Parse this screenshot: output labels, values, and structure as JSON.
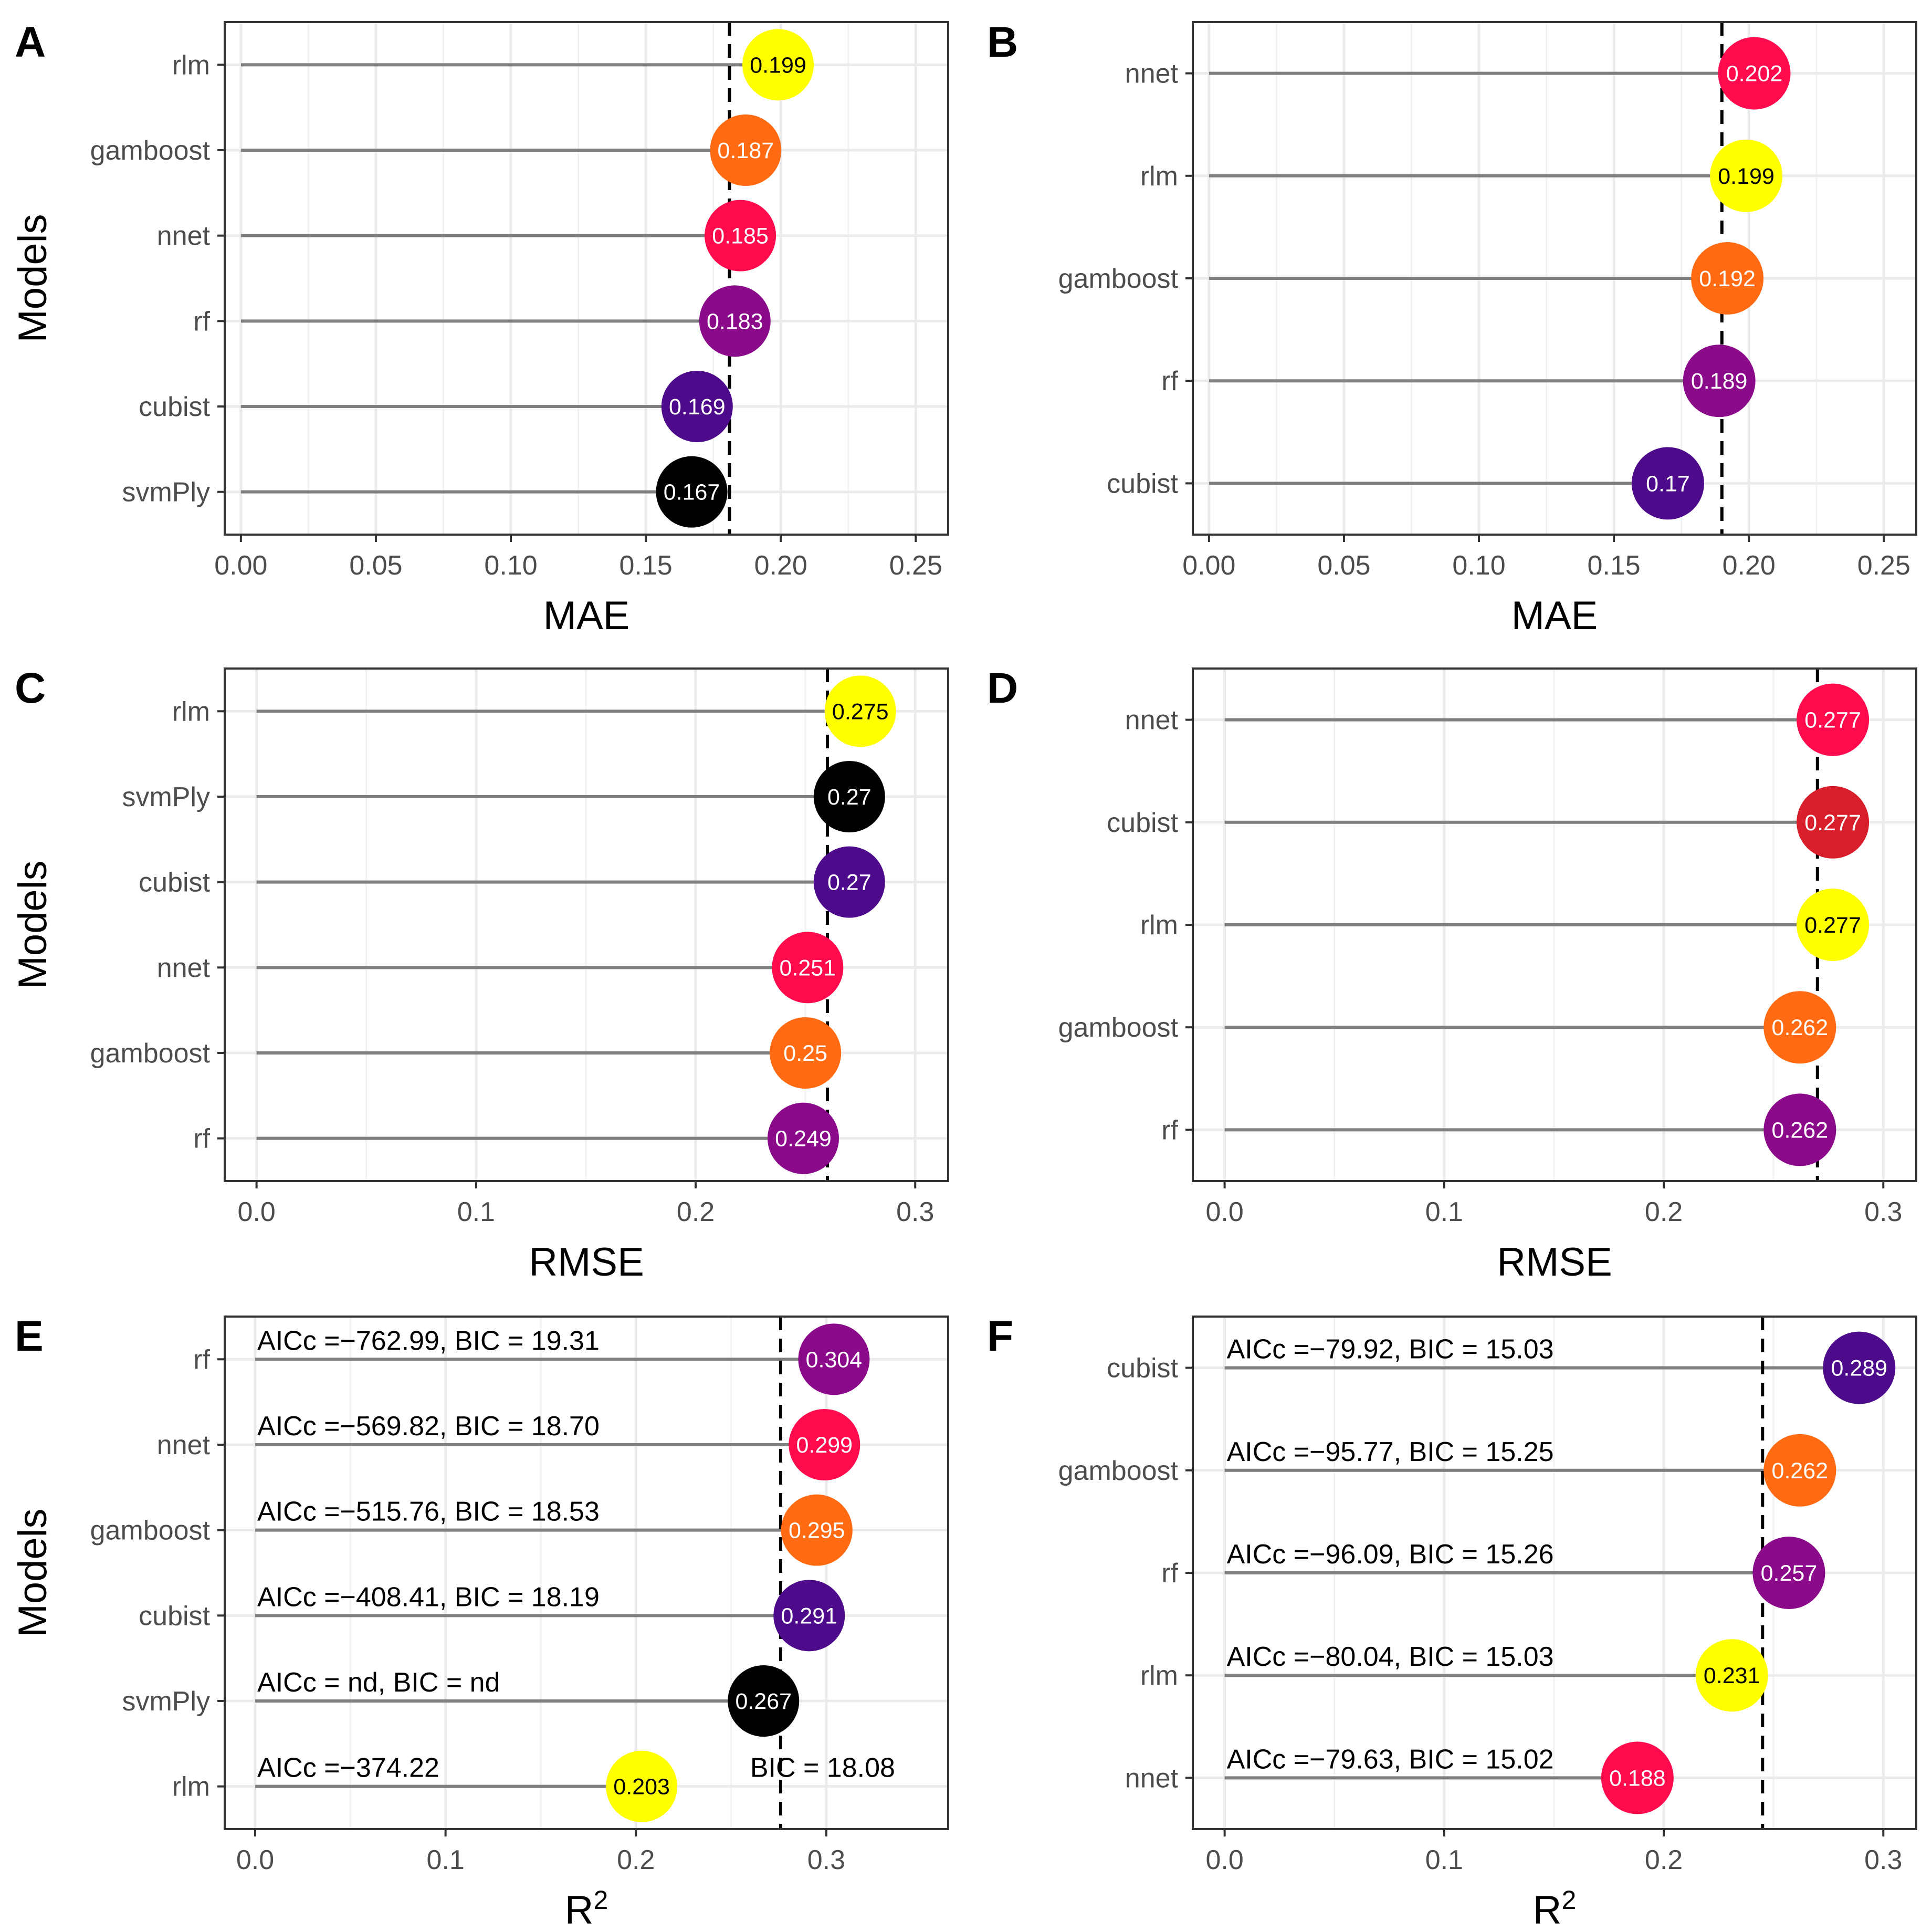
{
  "figure": {
    "ylabel": "Models",
    "mean_line_style": "dashed",
    "stem_color": "#7f7f7f",
    "bubble_colors": {
      "yellow": "#ffff00",
      "orange": "#ff6a13",
      "crimson": "#ff0a4c",
      "purple": "#8a0a8a",
      "indigo": "#4d0a8a",
      "black": "#000000",
      "red": "#d71e2a"
    }
  },
  "chart_data": [
    {
      "panel": "A",
      "type": "lollipop",
      "xlabel": "MAE",
      "ylabel": "Models",
      "xlim": [
        -0.006,
        0.262
      ],
      "xticks": [
        0.0,
        0.05,
        0.1,
        0.15,
        0.2,
        0.25
      ],
      "tick_decimals": 2,
      "reference_line": 0.181,
      "points": [
        {
          "model": "rlm",
          "value": 0.199,
          "label": "0.199",
          "color": "#ffff00",
          "text_color": "#000000"
        },
        {
          "model": "gamboost",
          "value": 0.187,
          "label": "0.187",
          "color": "#ff6a13",
          "text_color": "#ffffff"
        },
        {
          "model": "nnet",
          "value": 0.185,
          "label": "0.185",
          "color": "#ff0a4c",
          "text_color": "#ffffff"
        },
        {
          "model": "rf",
          "value": 0.183,
          "label": "0.183",
          "color": "#8a0a8a",
          "text_color": "#ffffff"
        },
        {
          "model": "cubist",
          "value": 0.169,
          "label": "0.169",
          "color": "#4d0a8a",
          "text_color": "#ffffff"
        },
        {
          "model": "svmPly",
          "value": 0.167,
          "label": "0.167",
          "color": "#000000",
          "text_color": "#ffffff"
        }
      ]
    },
    {
      "panel": "B",
      "type": "lollipop",
      "xlabel": "MAE",
      "ylabel": "",
      "xlim": [
        -0.006,
        0.262
      ],
      "xticks": [
        0.0,
        0.05,
        0.1,
        0.15,
        0.2,
        0.25
      ],
      "tick_decimals": 2,
      "reference_line": 0.19,
      "points": [
        {
          "model": "nnet",
          "value": 0.202,
          "label": "0.202",
          "color": "#ff0a4c",
          "text_color": "#ffffff"
        },
        {
          "model": "rlm",
          "value": 0.199,
          "label": "0.199",
          "color": "#ffff00",
          "text_color": "#000000"
        },
        {
          "model": "gamboost",
          "value": 0.192,
          "label": "0.192",
          "color": "#ff6a13",
          "text_color": "#ffffff"
        },
        {
          "model": "rf",
          "value": 0.189,
          "label": "0.189",
          "color": "#8a0a8a",
          "text_color": "#ffffff"
        },
        {
          "model": "cubist",
          "value": 0.17,
          "label": "0.17",
          "color": "#4d0a8a",
          "text_color": "#ffffff"
        }
      ]
    },
    {
      "panel": "C",
      "type": "lollipop",
      "xlabel": "RMSE",
      "ylabel": "Models",
      "xlim": [
        -0.0145,
        0.315
      ],
      "xticks": [
        0.0,
        0.1,
        0.2,
        0.3
      ],
      "tick_decimals": 1,
      "reference_line": 0.26,
      "points": [
        {
          "model": "rlm",
          "value": 0.275,
          "label": "0.275",
          "color": "#ffff00",
          "text_color": "#000000"
        },
        {
          "model": "svmPly",
          "value": 0.27,
          "label": "0.27",
          "color": "#000000",
          "text_color": "#ffffff"
        },
        {
          "model": "cubist",
          "value": 0.27,
          "label": "0.27",
          "color": "#4d0a8a",
          "text_color": "#ffffff"
        },
        {
          "model": "nnet",
          "value": 0.251,
          "label": "0.251",
          "color": "#ff0a4c",
          "text_color": "#ffffff"
        },
        {
          "model": "gamboost",
          "value": 0.25,
          "label": "0.25",
          "color": "#ff6a13",
          "text_color": "#ffffff"
        },
        {
          "model": "rf",
          "value": 0.249,
          "label": "0.249",
          "color": "#8a0a8a",
          "text_color": "#ffffff"
        }
      ]
    },
    {
      "panel": "D",
      "type": "lollipop",
      "xlabel": "RMSE",
      "ylabel": "",
      "xlim": [
        -0.0145,
        0.315
      ],
      "xticks": [
        0.0,
        0.1,
        0.2,
        0.3
      ],
      "tick_decimals": 1,
      "reference_line": 0.27,
      "points": [
        {
          "model": "nnet",
          "value": 0.277,
          "label": "0.277",
          "color": "#ff0a4c",
          "text_color": "#ffffff"
        },
        {
          "model": "cubist",
          "value": 0.277,
          "label": "0.277",
          "color": "#d71e2a",
          "text_color": "#ffffff"
        },
        {
          "model": "rlm",
          "value": 0.277,
          "label": "0.277",
          "color": "#ffff00",
          "text_color": "#000000"
        },
        {
          "model": "gamboost",
          "value": 0.262,
          "label": "0.262",
          "color": "#ff6a13",
          "text_color": "#ffffff"
        },
        {
          "model": "rf",
          "value": 0.262,
          "label": "0.262",
          "color": "#8a0a8a",
          "text_color": "#ffffff"
        }
      ]
    },
    {
      "panel": "E",
      "type": "lollipop",
      "xlabel": "R",
      "xlabel_superscript": "2",
      "ylabel": "Models",
      "xlim": [
        -0.016,
        0.364
      ],
      "xticks": [
        0.0,
        0.1,
        0.2,
        0.3
      ],
      "tick_decimals": 1,
      "reference_line": 0.276,
      "points": [
        {
          "model": "rf",
          "value": 0.304,
          "label": "0.304",
          "color": "#8a0a8a",
          "text_color": "#ffffff",
          "annotation": "AICc =−762.99, BIC = 19.31"
        },
        {
          "model": "nnet",
          "value": 0.299,
          "label": "0.299",
          "color": "#ff0a4c",
          "text_color": "#ffffff",
          "annotation": "AICc =−569.82, BIC = 18.70"
        },
        {
          "model": "gamboost",
          "value": 0.295,
          "label": "0.295",
          "color": "#ff6a13",
          "text_color": "#ffffff",
          "annotation": "AICc =−515.76, BIC = 18.53"
        },
        {
          "model": "cubist",
          "value": 0.291,
          "label": "0.291",
          "color": "#4d0a8a",
          "text_color": "#ffffff",
          "annotation": "AICc =−408.41, BIC = 18.19"
        },
        {
          "model": "svmPly",
          "value": 0.267,
          "label": "0.267",
          "color": "#000000",
          "text_color": "#ffffff",
          "annotation": "AICc = nd, BIC = nd"
        },
        {
          "model": "rlm",
          "value": 0.203,
          "label": "0.203",
          "color": "#ffff00",
          "text_color": "#000000",
          "annotation": "AICc =−374.22",
          "annotation_right": "BIC = 18.08"
        }
      ]
    },
    {
      "panel": "F",
      "type": "lollipop",
      "xlabel": "R",
      "xlabel_superscript": "2",
      "ylabel": "",
      "xlim": [
        -0.0145,
        0.315
      ],
      "xticks": [
        0.0,
        0.1,
        0.2,
        0.3
      ],
      "tick_decimals": 1,
      "reference_line": 0.245,
      "points": [
        {
          "model": "cubist",
          "value": 0.289,
          "label": "0.289",
          "color": "#4d0a8a",
          "text_color": "#ffffff",
          "annotation": "AICc =−79.92, BIC = 15.03"
        },
        {
          "model": "gamboost",
          "value": 0.262,
          "label": "0.262",
          "color": "#ff6a13",
          "text_color": "#ffffff",
          "annotation": "AICc =−95.77, BIC = 15.25"
        },
        {
          "model": "rf",
          "value": 0.257,
          "label": "0.257",
          "color": "#8a0a8a",
          "text_color": "#ffffff",
          "annotation": "AICc =−96.09, BIC = 15.26"
        },
        {
          "model": "rlm",
          "value": 0.231,
          "label": "0.231",
          "color": "#ffff00",
          "text_color": "#000000",
          "annotation": "AICc =−80.04, BIC = 15.03"
        },
        {
          "model": "nnet",
          "value": 0.188,
          "label": "0.188",
          "color": "#ff0a4c",
          "text_color": "#ffffff",
          "annotation": "AICc =−79.63, BIC = 15.02"
        }
      ]
    }
  ]
}
